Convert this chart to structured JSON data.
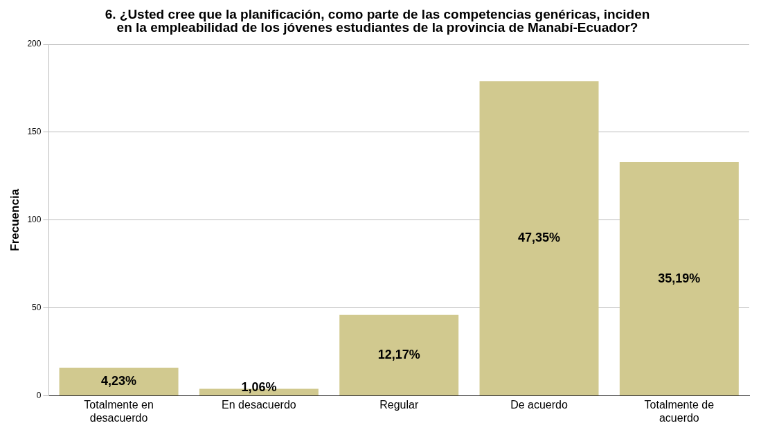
{
  "chart_data": {
    "type": "bar",
    "title": "6. ¿Usted cree que la planificación, como parte de las competencias genéricas, inciden en la empleabilidad de los jóvenes estudiantes de la provincia de Manabí-Ecuador?",
    "ylabel": "Frecuencia",
    "categories": [
      "Totalmente en desacuerdo",
      "En desacuerdo",
      "Regular",
      "De acuerdo",
      "Totalmente de acuerdo"
    ],
    "values": [
      16,
      4,
      46,
      179,
      133
    ],
    "annotations": [
      "4,23%",
      "1,06%",
      "12,17%",
      "47,35%",
      "35,19%"
    ],
    "color": "#d1c98f",
    "ylim": [
      0,
      200
    ],
    "yticks": [
      0,
      50,
      100,
      150,
      200
    ],
    "grid": "y",
    "legend": false
  }
}
